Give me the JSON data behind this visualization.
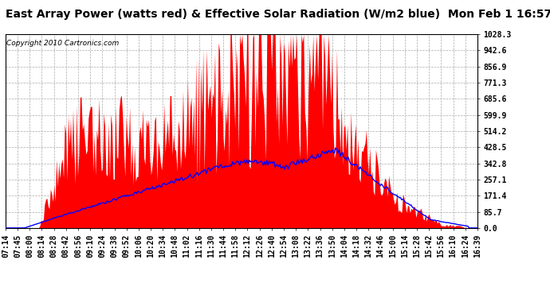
{
  "title": "East Array Power (watts red) & Effective Solar Radiation (W/m2 blue)  Mon Feb 1 16:57",
  "copyright": "Copyright 2010 Cartronics.com",
  "yticks": [
    0.0,
    85.7,
    171.4,
    257.1,
    342.8,
    428.5,
    514.2,
    599.9,
    685.6,
    771.3,
    856.9,
    942.6,
    1028.3
  ],
  "ylim": [
    0,
    1028.3
  ],
  "xlabels": [
    "07:14",
    "07:45",
    "08:00",
    "08:14",
    "08:28",
    "08:42",
    "08:56",
    "09:10",
    "09:24",
    "09:38",
    "09:52",
    "10:06",
    "10:20",
    "10:34",
    "10:48",
    "11:02",
    "11:16",
    "11:30",
    "11:44",
    "11:58",
    "12:12",
    "12:26",
    "12:40",
    "12:54",
    "13:08",
    "13:22",
    "13:36",
    "13:50",
    "14:04",
    "14:18",
    "14:32",
    "14:46",
    "15:00",
    "15:14",
    "15:28",
    "15:42",
    "15:56",
    "16:10",
    "16:24",
    "16:39"
  ],
  "bg_color": "#ffffff",
  "plot_bg_color": "#ffffff",
  "grid_color": "#aaaaaa",
  "red_color": "#ff0000",
  "blue_color": "#0000ff",
  "title_fontsize": 10,
  "tick_fontsize": 7,
  "copyright_fontsize": 6.5
}
